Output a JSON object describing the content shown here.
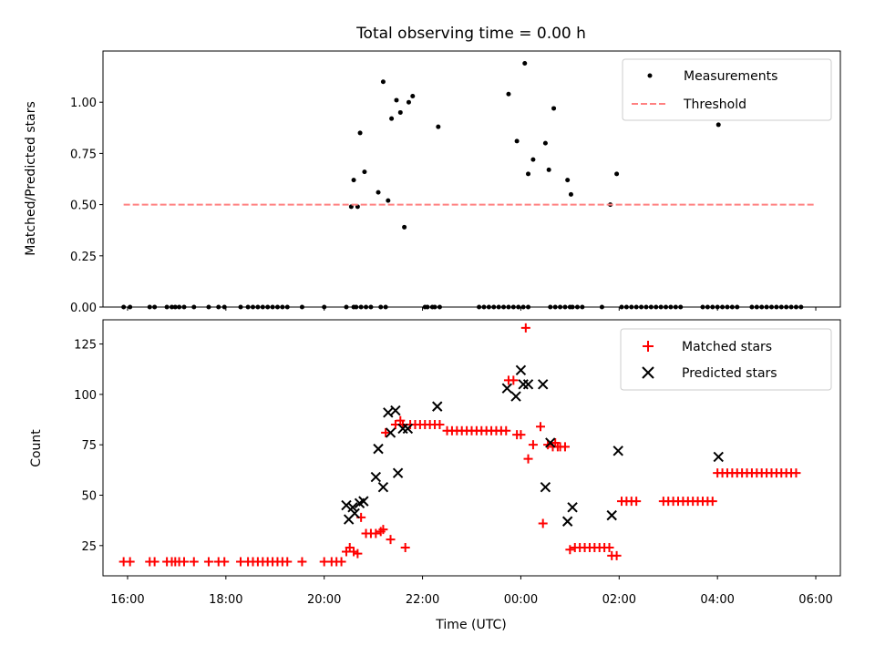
{
  "figure": {
    "title": "Total observing time = 0.00 h"
  },
  "chart_data": [
    {
      "type": "scatter",
      "ylabel": "Matched/Predicted stars",
      "xlabel": "",
      "x_unit": "hours since 16:00 UTC",
      "xlim": [
        -0.5,
        14.5
      ],
      "ylim": [
        0,
        1.25
      ],
      "yticks": [
        0.0,
        0.25,
        0.5,
        0.75,
        1.0
      ],
      "ytick_labels": [
        "0.00",
        "0.25",
        "0.50",
        "0.75",
        "1.00"
      ],
      "legend": {
        "placement": "upper right",
        "entries": [
          "Measurements",
          "Threshold"
        ]
      },
      "series": [
        {
          "name": "Measurements",
          "marker": "dot",
          "color": "#000000",
          "points": [
            [
              -0.08,
              0
            ],
            [
              0.05,
              0
            ],
            [
              0.45,
              0
            ],
            [
              0.55,
              0
            ],
            [
              0.8,
              0
            ],
            [
              0.9,
              0
            ],
            [
              0.97,
              0
            ],
            [
              1.05,
              0
            ],
            [
              1.15,
              0
            ],
            [
              1.35,
              0
            ],
            [
              1.65,
              0
            ],
            [
              1.85,
              0
            ],
            [
              1.97,
              0
            ],
            [
              2.3,
              0
            ],
            [
              2.45,
              0
            ],
            [
              2.55,
              0
            ],
            [
              2.65,
              0
            ],
            [
              2.75,
              0
            ],
            [
              2.85,
              0
            ],
            [
              2.95,
              0
            ],
            [
              3.05,
              0
            ],
            [
              3.15,
              0
            ],
            [
              3.25,
              0
            ],
            [
              3.55,
              0
            ],
            [
              4.0,
              0
            ],
            [
              4.45,
              0
            ],
            [
              4.6,
              0
            ],
            [
              4.65,
              0
            ],
            [
              4.75,
              0
            ],
            [
              4.85,
              0
            ],
            [
              4.95,
              0
            ],
            [
              5.15,
              0
            ],
            [
              5.25,
              0
            ],
            [
              6.05,
              0
            ],
            [
              6.1,
              0
            ],
            [
              6.2,
              0
            ],
            [
              6.25,
              0
            ],
            [
              6.35,
              0
            ],
            [
              7.15,
              0
            ],
            [
              7.25,
              0
            ],
            [
              7.35,
              0
            ],
            [
              7.45,
              0
            ],
            [
              7.55,
              0
            ],
            [
              7.65,
              0
            ],
            [
              7.75,
              0
            ],
            [
              7.85,
              0
            ],
            [
              7.95,
              0
            ],
            [
              8.05,
              0
            ],
            [
              8.15,
              0
            ],
            [
              8.6,
              0
            ],
            [
              8.7,
              0
            ],
            [
              8.8,
              0
            ],
            [
              8.9,
              0
            ],
            [
              9.0,
              0
            ],
            [
              9.05,
              0
            ],
            [
              9.15,
              0
            ],
            [
              9.25,
              0
            ],
            [
              9.65,
              0
            ],
            [
              10.05,
              0
            ],
            [
              10.15,
              0
            ],
            [
              10.25,
              0
            ],
            [
              10.35,
              0
            ],
            [
              10.45,
              0
            ],
            [
              10.55,
              0
            ],
            [
              10.65,
              0
            ],
            [
              10.75,
              0
            ],
            [
              10.85,
              0
            ],
            [
              10.95,
              0
            ],
            [
              11.05,
              0
            ],
            [
              11.15,
              0
            ],
            [
              11.25,
              0
            ],
            [
              11.7,
              0
            ],
            [
              11.8,
              0
            ],
            [
              11.9,
              0
            ],
            [
              12.0,
              0
            ],
            [
              12.1,
              0
            ],
            [
              12.2,
              0
            ],
            [
              12.3,
              0
            ],
            [
              12.4,
              0
            ],
            [
              12.7,
              0
            ],
            [
              12.8,
              0
            ],
            [
              12.9,
              0
            ],
            [
              13.0,
              0
            ],
            [
              13.1,
              0
            ],
            [
              13.2,
              0
            ],
            [
              13.3,
              0
            ],
            [
              13.4,
              0
            ],
            [
              13.5,
              0
            ],
            [
              13.6,
              0
            ],
            [
              13.7,
              0
            ],
            [
              4.55,
              0.49
            ],
            [
              4.6,
              0.62
            ],
            [
              4.68,
              0.49
            ],
            [
              4.73,
              0.85
            ],
            [
              4.82,
              0.66
            ],
            [
              5.1,
              0.56
            ],
            [
              5.2,
              1.1
            ],
            [
              5.3,
              0.52
            ],
            [
              5.37,
              0.92
            ],
            [
              5.47,
              1.01
            ],
            [
              5.55,
              0.95
            ],
            [
              5.63,
              0.39
            ],
            [
              5.72,
              1.0
            ],
            [
              5.8,
              1.03
            ],
            [
              6.32,
              0.88
            ],
            [
              7.75,
              1.04
            ],
            [
              7.92,
              0.81
            ],
            [
              8.08,
              1.19
            ],
            [
              8.15,
              0.65
            ],
            [
              8.25,
              0.72
            ],
            [
              8.5,
              0.8
            ],
            [
              8.57,
              0.67
            ],
            [
              8.67,
              0.97
            ],
            [
              8.95,
              0.62
            ],
            [
              9.02,
              0.55
            ],
            [
              9.82,
              0.5
            ],
            [
              9.95,
              0.65
            ],
            [
              12.02,
              0.89
            ]
          ]
        },
        {
          "name": "Threshold",
          "line": "dashed",
          "color": "#ff8080",
          "points": [
            [
              -0.08,
              0.5
            ],
            [
              14.0,
              0.5
            ]
          ]
        }
      ]
    },
    {
      "type": "scatter",
      "ylabel": "Count",
      "xlabel": "Time (UTC)",
      "x_unit": "hours since 16:00 UTC",
      "xlim": [
        -0.5,
        14.5
      ],
      "ylim": [
        10,
        137
      ],
      "yticks": [
        25,
        50,
        75,
        100,
        125
      ],
      "ytick_labels": [
        "25",
        "50",
        "75",
        "100",
        "125"
      ],
      "xticks": [
        0,
        2,
        4,
        6,
        8,
        10,
        12,
        14
      ],
      "xtick_labels": [
        "16:00",
        "18:00",
        "20:00",
        "22:00",
        "00:00",
        "02:00",
        "04:00",
        "06:00"
      ],
      "legend": {
        "placement": "upper right",
        "entries": [
          "Matched stars",
          "Predicted stars"
        ]
      },
      "series": [
        {
          "name": "Matched stars",
          "marker": "plus",
          "color": "#ff0000",
          "points": [
            [
              -0.08,
              17
            ],
            [
              0.05,
              17
            ],
            [
              0.45,
              17
            ],
            [
              0.55,
              17
            ],
            [
              0.8,
              17
            ],
            [
              0.9,
              17
            ],
            [
              0.97,
              17
            ],
            [
              1.05,
              17
            ],
            [
              1.15,
              17
            ],
            [
              1.35,
              17
            ],
            [
              1.65,
              17
            ],
            [
              1.85,
              17
            ],
            [
              1.97,
              17
            ],
            [
              2.3,
              17
            ],
            [
              2.45,
              17
            ],
            [
              2.55,
              17
            ],
            [
              2.65,
              17
            ],
            [
              2.75,
              17
            ],
            [
              2.85,
              17
            ],
            [
              2.95,
              17
            ],
            [
              3.05,
              17
            ],
            [
              3.15,
              17
            ],
            [
              3.25,
              17
            ],
            [
              3.55,
              17
            ],
            [
              4.0,
              17
            ],
            [
              4.15,
              17
            ],
            [
              4.25,
              17
            ],
            [
              4.35,
              17
            ],
            [
              4.45,
              22
            ],
            [
              4.52,
              24
            ],
            [
              4.6,
              22
            ],
            [
              4.68,
              21
            ],
            [
              4.75,
              39
            ],
            [
              4.85,
              31
            ],
            [
              4.95,
              31
            ],
            [
              5.05,
              31
            ],
            [
              5.15,
              32
            ],
            [
              5.2,
              33
            ],
            [
              5.25,
              81
            ],
            [
              5.35,
              28
            ],
            [
              5.45,
              85
            ],
            [
              5.55,
              87
            ],
            [
              5.6,
              85
            ],
            [
              5.65,
              24
            ],
            [
              5.75,
              85
            ],
            [
              5.85,
              85
            ],
            [
              5.95,
              85
            ],
            [
              6.05,
              85
            ],
            [
              6.15,
              85
            ],
            [
              6.25,
              85
            ],
            [
              6.35,
              85
            ],
            [
              6.5,
              82
            ],
            [
              6.6,
              82
            ],
            [
              6.7,
              82
            ],
            [
              6.8,
              82
            ],
            [
              6.9,
              82
            ],
            [
              7.0,
              82
            ],
            [
              7.1,
              82
            ],
            [
              7.2,
              82
            ],
            [
              7.3,
              82
            ],
            [
              7.4,
              82
            ],
            [
              7.5,
              82
            ],
            [
              7.6,
              82
            ],
            [
              7.7,
              82
            ],
            [
              7.75,
              107
            ],
            [
              7.85,
              107
            ],
            [
              7.92,
              80
            ],
            [
              8.0,
              80
            ],
            [
              8.1,
              133
            ],
            [
              8.15,
              68
            ],
            [
              8.25,
              75
            ],
            [
              8.4,
              84
            ],
            [
              8.45,
              36
            ],
            [
              8.55,
              75
            ],
            [
              8.65,
              74
            ],
            [
              8.7,
              76
            ],
            [
              8.75,
              74
            ],
            [
              8.8,
              74
            ],
            [
              8.9,
              74
            ],
            [
              9.0,
              23
            ],
            [
              9.1,
              24
            ],
            [
              9.2,
              24
            ],
            [
              9.3,
              24
            ],
            [
              9.4,
              24
            ],
            [
              9.5,
              24
            ],
            [
              9.6,
              24
            ],
            [
              9.7,
              24
            ],
            [
              9.8,
              24
            ],
            [
              9.85,
              20
            ],
            [
              9.95,
              20
            ],
            [
              10.05,
              47
            ],
            [
              10.15,
              47
            ],
            [
              10.25,
              47
            ],
            [
              10.35,
              47
            ],
            [
              10.9,
              47
            ],
            [
              11.0,
              47
            ],
            [
              11.1,
              47
            ],
            [
              11.2,
              47
            ],
            [
              11.3,
              47
            ],
            [
              11.4,
              47
            ],
            [
              11.5,
              47
            ],
            [
              11.6,
              47
            ],
            [
              11.7,
              47
            ],
            [
              11.8,
              47
            ],
            [
              11.9,
              47
            ],
            [
              12.0,
              61
            ],
            [
              12.1,
              61
            ],
            [
              12.2,
              61
            ],
            [
              12.3,
              61
            ],
            [
              12.4,
              61
            ],
            [
              12.5,
              61
            ],
            [
              12.6,
              61
            ],
            [
              12.7,
              61
            ],
            [
              12.8,
              61
            ],
            [
              12.9,
              61
            ],
            [
              13.0,
              61
            ],
            [
              13.1,
              61
            ],
            [
              13.2,
              61
            ],
            [
              13.3,
              61
            ],
            [
              13.4,
              61
            ],
            [
              13.5,
              61
            ],
            [
              13.6,
              61
            ]
          ]
        },
        {
          "name": "Predicted stars",
          "marker": "x",
          "color": "#000000",
          "points": [
            [
              4.45,
              45
            ],
            [
              4.5,
              38
            ],
            [
              4.58,
              44
            ],
            [
              4.62,
              41
            ],
            [
              4.72,
              46
            ],
            [
              4.8,
              47
            ],
            [
              5.05,
              59
            ],
            [
              5.1,
              73
            ],
            [
              5.2,
              54
            ],
            [
              5.3,
              91
            ],
            [
              5.35,
              81
            ],
            [
              5.45,
              92
            ],
            [
              5.5,
              61
            ],
            [
              5.6,
              83
            ],
            [
              5.7,
              83
            ],
            [
              6.3,
              94
            ],
            [
              7.72,
              103
            ],
            [
              7.9,
              99
            ],
            [
              8.0,
              112
            ],
            [
              8.05,
              105
            ],
            [
              8.15,
              105
            ],
            [
              8.45,
              105
            ],
            [
              8.5,
              54
            ],
            [
              8.6,
              76
            ],
            [
              8.95,
              37
            ],
            [
              9.05,
              44
            ],
            [
              9.85,
              40
            ],
            [
              9.98,
              72
            ],
            [
              12.02,
              69
            ]
          ]
        }
      ]
    }
  ]
}
